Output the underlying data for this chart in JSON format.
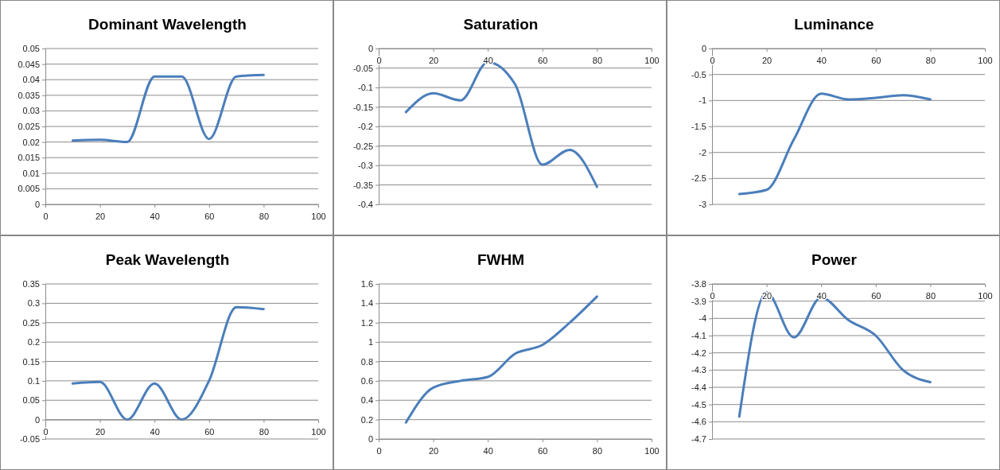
{
  "chart_data": [
    {
      "type": "line",
      "title": "Dominant Wavelength",
      "x": [
        10,
        20,
        30,
        40,
        50,
        60,
        70,
        80
      ],
      "series": [
        {
          "color": "#4a7ebb",
          "values": [
            0.0205,
            0.0207,
            0.02,
            0.041,
            0.041,
            0.021,
            0.041,
            0.0415
          ]
        }
      ],
      "xlim": [
        0,
        100
      ],
      "xticks": [
        0,
        20,
        40,
        60,
        80,
        100
      ],
      "ylim": [
        0,
        0.05
      ],
      "yticks": [
        0,
        0.005,
        0.01,
        0.015,
        0.02,
        0.025,
        0.03,
        0.035,
        0.04,
        0.045,
        0.05
      ],
      "grid": "y",
      "marker": "none"
    },
    {
      "type": "line",
      "title": "Saturation",
      "x": [
        10,
        20,
        30,
        40,
        50,
        60,
        70,
        80
      ],
      "series": [
        {
          "color": "#4a7ebb",
          "values": [
            -0.163,
            -0.115,
            -0.133,
            -0.035,
            -0.092,
            -0.298,
            -0.26,
            -0.355
          ]
        }
      ],
      "xlim": [
        0,
        100
      ],
      "xticks": [
        0,
        20,
        40,
        60,
        80,
        100
      ],
      "ylim": [
        -0.4,
        0
      ],
      "yticks": [
        -0.4,
        -0.35,
        -0.3,
        -0.25,
        -0.2,
        -0.15,
        -0.1,
        -0.05,
        0
      ],
      "grid": "y",
      "marker": "none"
    },
    {
      "type": "line",
      "title": "Luminance",
      "x": [
        10,
        20,
        30,
        40,
        50,
        60,
        70,
        80
      ],
      "series": [
        {
          "color": "#4a7ebb",
          "values": [
            -2.8,
            -2.72,
            -1.75,
            -0.87,
            -0.98,
            -0.95,
            -0.9,
            -0.98
          ]
        }
      ],
      "xlim": [
        0,
        100
      ],
      "xticks": [
        0,
        20,
        40,
        60,
        80,
        100
      ],
      "ylim": [
        -3,
        0
      ],
      "yticks": [
        -3,
        -2.5,
        -2,
        -1.5,
        -1,
        -0.5,
        0
      ],
      "grid": "y",
      "marker": "none"
    },
    {
      "type": "line",
      "title": "Peak Wavelength",
      "x": [
        10,
        20,
        30,
        40,
        50,
        60,
        70,
        80
      ],
      "series": [
        {
          "color": "#4a7ebb",
          "values": [
            0.093,
            0.097,
            0,
            0.093,
            0,
            0.1,
            0.29,
            0.285
          ]
        }
      ],
      "xlim": [
        0,
        100
      ],
      "xticks": [
        0,
        20,
        40,
        60,
        80,
        100
      ],
      "ylim": [
        -0.05,
        0.35
      ],
      "yticks": [
        -0.05,
        0,
        0.05,
        0.1,
        0.15,
        0.2,
        0.25,
        0.3,
        0.35
      ],
      "grid": "y",
      "marker": "none"
    },
    {
      "type": "line",
      "title": "FWHM",
      "x": [
        10,
        20,
        30,
        40,
        50,
        60,
        70,
        80
      ],
      "series": [
        {
          "color": "#4a7ebb",
          "values": [
            0.17,
            0.53,
            0.6,
            0.64,
            0.88,
            0.97,
            1.2,
            1.47
          ]
        }
      ],
      "xlim": [
        0,
        100
      ],
      "xticks": [
        0,
        20,
        40,
        60,
        80,
        100
      ],
      "ylim": [
        0,
        1.6
      ],
      "yticks": [
        0,
        0.2,
        0.4,
        0.6,
        0.8,
        1,
        1.2,
        1.4,
        1.6
      ],
      "grid": "y",
      "marker": "none"
    },
    {
      "type": "line",
      "title": "Power",
      "x": [
        10,
        20,
        30,
        40,
        50,
        60,
        70,
        80
      ],
      "series": [
        {
          "color": "#4a7ebb",
          "values": [
            -4.57,
            -3.85,
            -4.11,
            -3.88,
            -4.01,
            -4.1,
            -4.3,
            -4.37
          ]
        }
      ],
      "xlim": [
        0,
        100
      ],
      "xticks": [
        0,
        20,
        40,
        60,
        80,
        100
      ],
      "ylim": [
        -4.7,
        -3.8
      ],
      "yticks": [
        -4.7,
        -4.6,
        -4.5,
        -4.4,
        -4.3,
        -4.2,
        -4.1,
        -4,
        -3.9,
        -3.8
      ],
      "grid": "y",
      "marker": "none"
    }
  ]
}
